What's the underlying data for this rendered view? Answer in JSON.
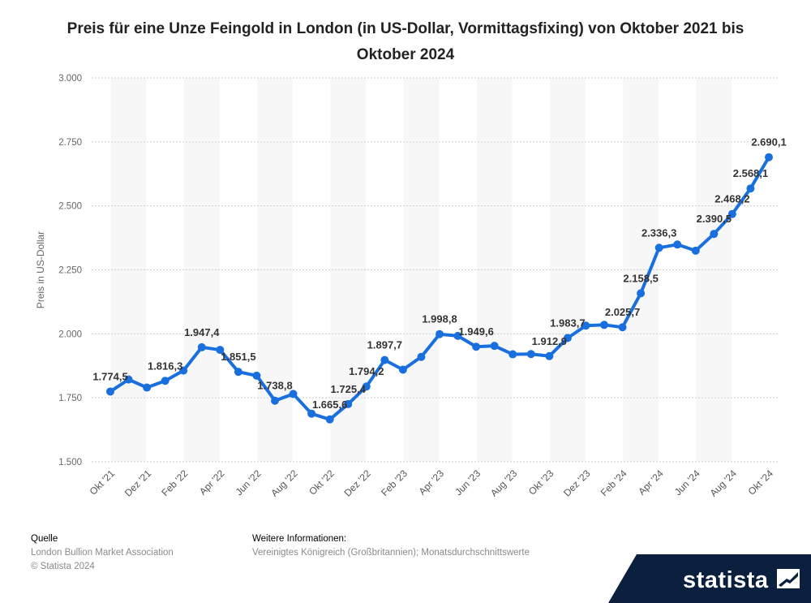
{
  "title": "Preis für eine Unze Feingold in London (in US-Dollar, Vormittagsfixing) von Oktober 2021 bis Oktober 2024",
  "footer": {
    "source_heading": "Quelle",
    "source_line1": "London Bullion Market Association",
    "source_line2": "© Statista 2024",
    "info_heading": "Weitere Informationen:",
    "info_text": "Vereinigtes Königreich (Großbritannien); Monatsdurchschnittswerte"
  },
  "brand": {
    "name": "statista",
    "background": "#0b1f3f"
  },
  "chart_data": {
    "type": "line",
    "title": "Preis für eine Unze Feingold in London (in US-Dollar, Vormittagsfixing) von Oktober 2021 bis Oktober 2024",
    "ylabel": "Preis in US-Dollar",
    "xlabel": "",
    "ylim": [
      1500,
      3000
    ],
    "yticks": [
      1500,
      1750,
      2000,
      2250,
      2500,
      2750,
      3000
    ],
    "ytick_labels": [
      "1.500",
      "1.750",
      "2.000",
      "2.250",
      "2.500",
      "2.750",
      "3.000"
    ],
    "grid": true,
    "line_color": "#1a6fdf",
    "x": [
      "Okt '21",
      "Nov '21",
      "Dez '21",
      "Jan '22",
      "Feb '22",
      "Mär '22",
      "Apr '22",
      "Mai '22",
      "Jun '22",
      "Jul '22",
      "Aug '22",
      "Sep '22",
      "Okt '22",
      "Nov '22",
      "Dez '22",
      "Jan '23",
      "Feb '23",
      "Mär '23",
      "Apr '23",
      "Mai '23",
      "Jun '23",
      "Jul '23",
      "Aug '23",
      "Sep '23",
      "Okt '23",
      "Nov '23",
      "Dez '23",
      "Jan '24",
      "Feb '24",
      "Mär '24",
      "Apr '24",
      "Mai '24",
      "Jun '24",
      "Jul '24",
      "Aug '24",
      "Sep '24",
      "Okt '24"
    ],
    "xtick_labels": [
      "Okt '21",
      "Dez '21",
      "Feb '22",
      "Apr '22",
      "Jun '22",
      "Aug '22",
      "Okt '22",
      "Dez '22",
      "Feb '23",
      "Apr '23",
      "Jun '23",
      "Aug '23",
      "Okt '23",
      "Dez '23",
      "Feb '24",
      "Apr '24",
      "Jun '24",
      "Aug '24",
      "Okt '24"
    ],
    "values": [
      1774.5,
      1821.5,
      1790.0,
      1816.3,
      1856.3,
      1947.4,
      1937.4,
      1851.5,
      1836.6,
      1738.8,
      1765.0,
      1688.0,
      1665.6,
      1725.4,
      1794.2,
      1897.7,
      1860.0,
      1910.0,
      1998.8,
      1992.0,
      1949.6,
      1953.0,
      1920.0,
      1921.0,
      1912.9,
      1983.7,
      2032.0,
      2035.0,
      2025.7,
      2158.5,
      2336.3,
      2349.0,
      2325.0,
      2390.5,
      2468.2,
      2568.1,
      2690.1
    ],
    "data_labels": [
      {
        "index": 0,
        "text": "1.774,5"
      },
      {
        "index": 3,
        "text": "1.816,3"
      },
      {
        "index": 5,
        "text": "1.947,4"
      },
      {
        "index": 7,
        "text": "1.851,5"
      },
      {
        "index": 9,
        "text": "1.738,8"
      },
      {
        "index": 12,
        "text": "1.665,6"
      },
      {
        "index": 13,
        "text": "1.725,4"
      },
      {
        "index": 14,
        "text": "1.794,2"
      },
      {
        "index": 15,
        "text": "1.897,7"
      },
      {
        "index": 18,
        "text": "1.998,8"
      },
      {
        "index": 20,
        "text": "1.949,6"
      },
      {
        "index": 24,
        "text": "1.912,9"
      },
      {
        "index": 25,
        "text": "1.983,7"
      },
      {
        "index": 28,
        "text": "2.025,7"
      },
      {
        "index": 29,
        "text": "2.158,5"
      },
      {
        "index": 30,
        "text": "2.336,3"
      },
      {
        "index": 33,
        "text": "2.390,5"
      },
      {
        "index": 34,
        "text": "2.468,2"
      },
      {
        "index": 35,
        "text": "2.568,1"
      },
      {
        "index": 36,
        "text": "2.690,1"
      }
    ]
  }
}
